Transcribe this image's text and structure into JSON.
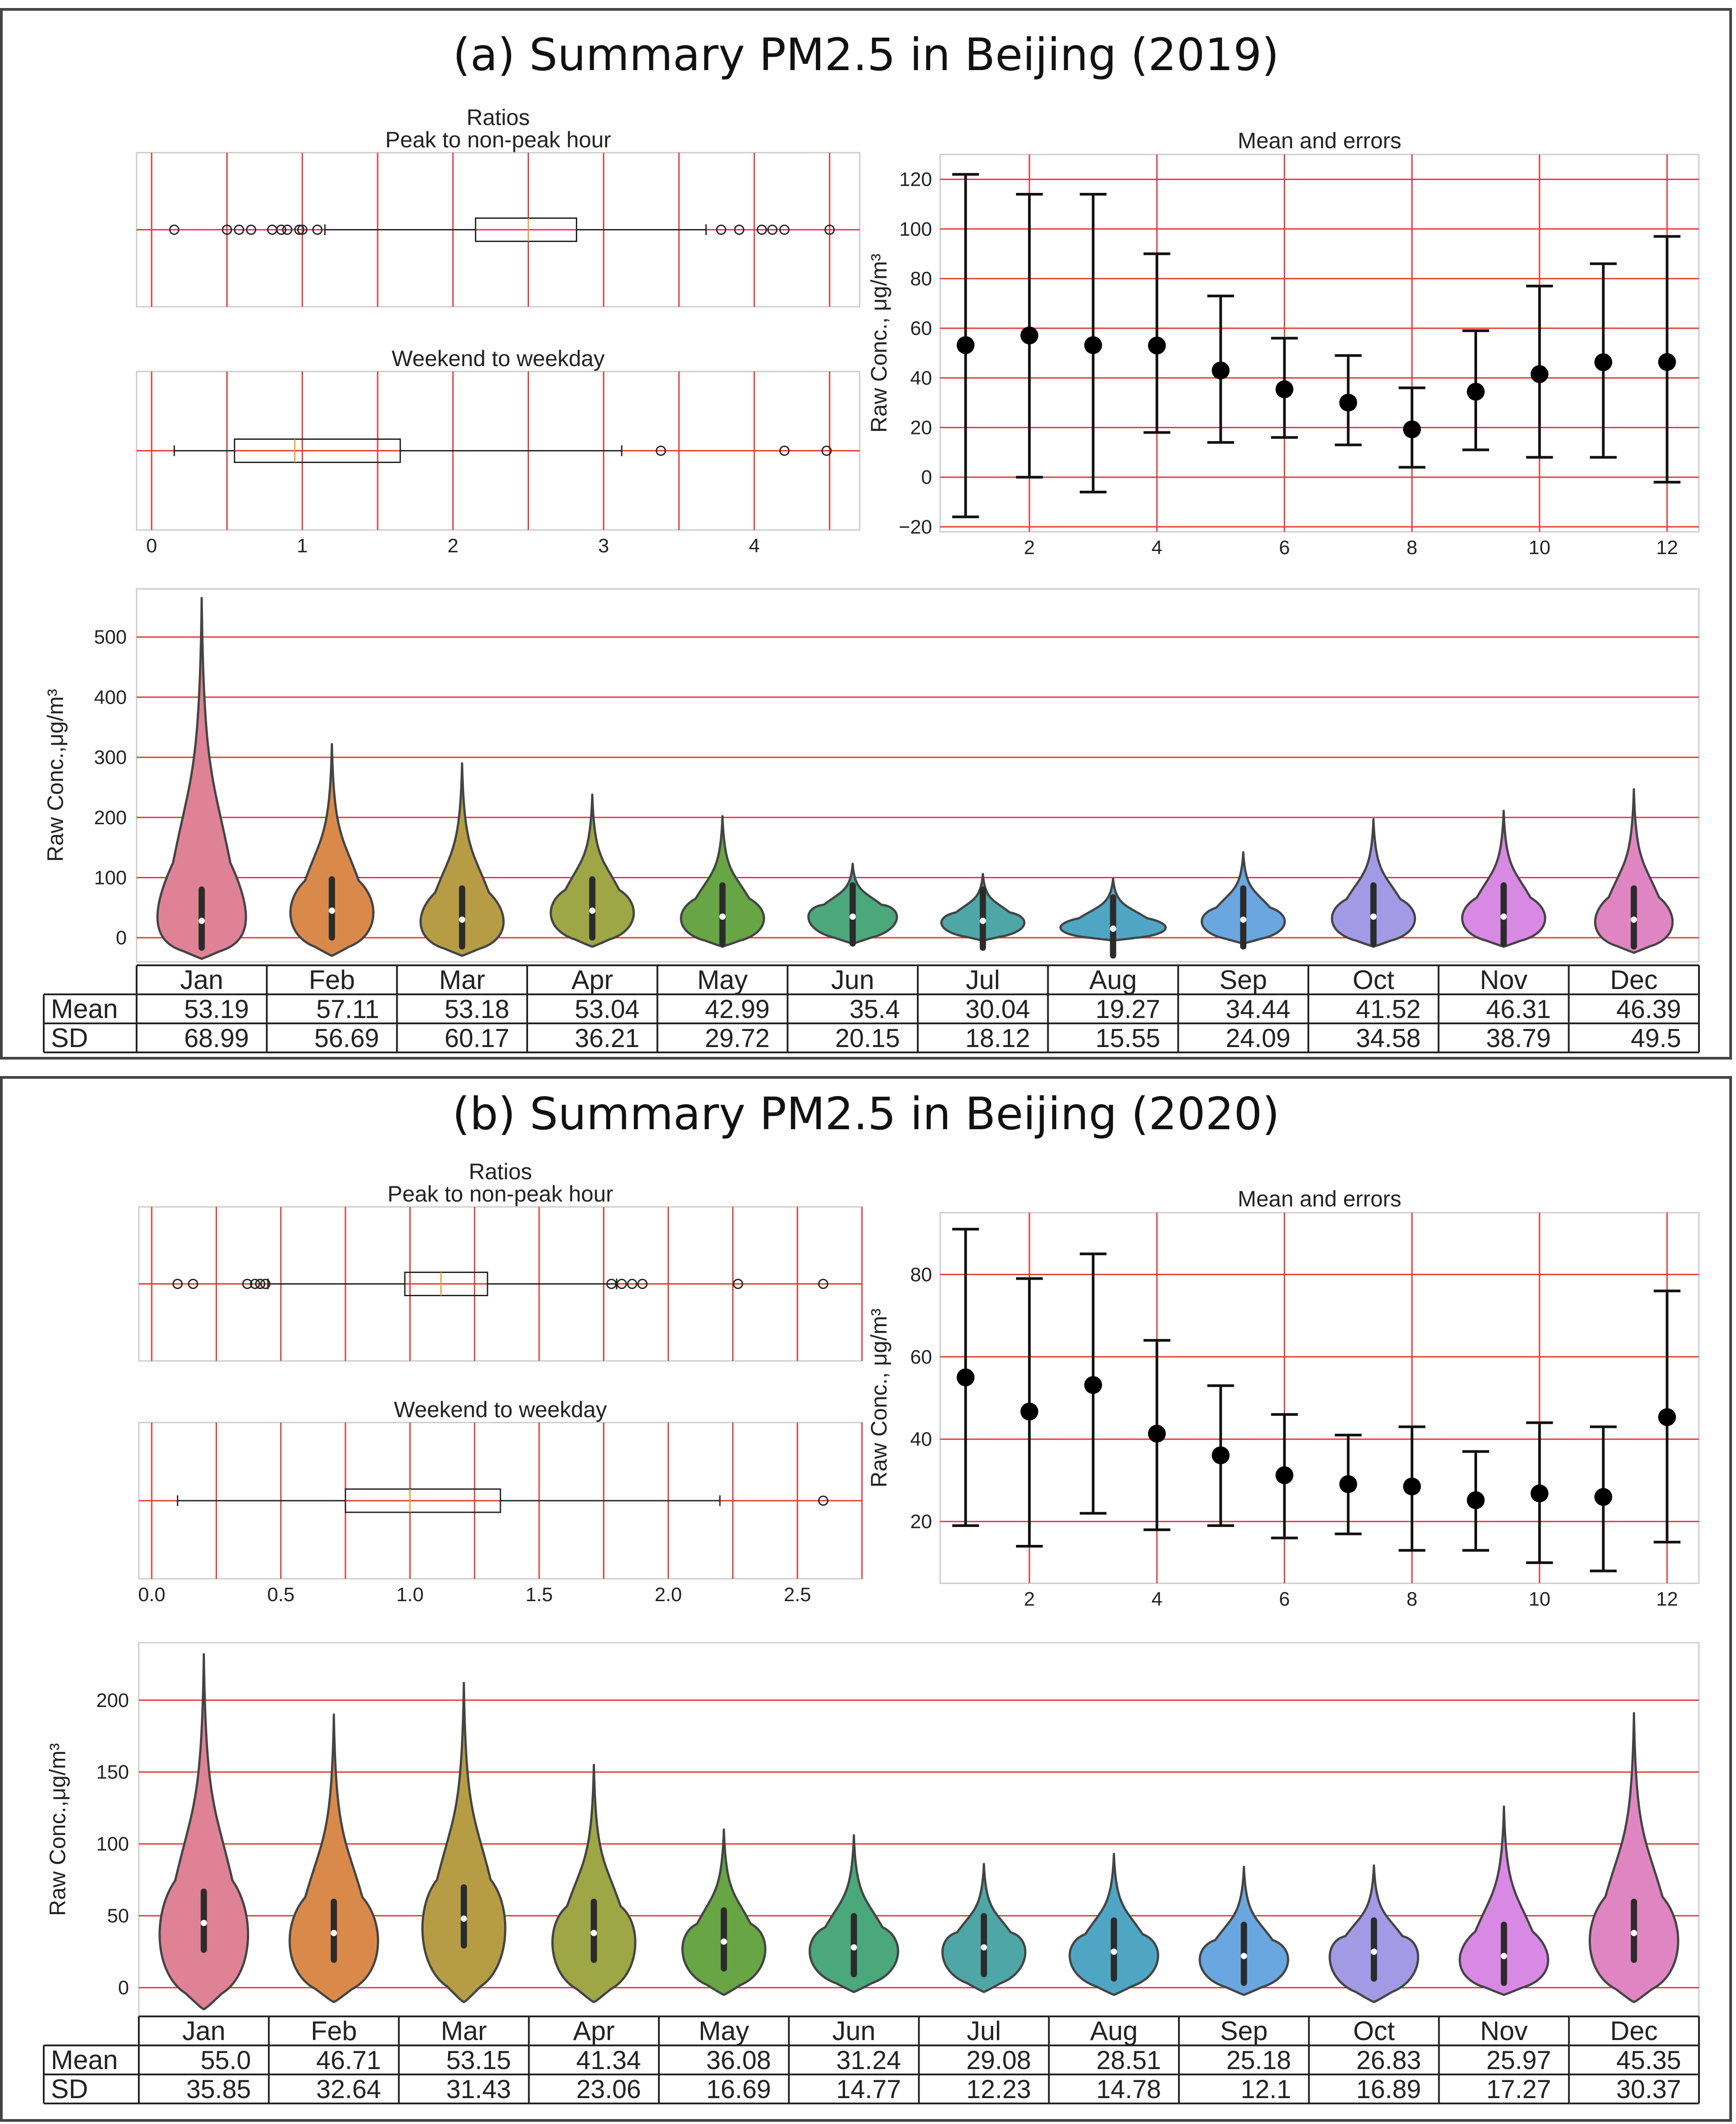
{
  "panels": [
    {
      "title": "(a) Summary PM2.5 in Beijing (2019)",
      "ratios_title_1": "Ratios",
      "ratios_title_2": "Peak to non-peak hour",
      "weekend_title": "Weekend to weekday",
      "ratio_axis": {
        "min": -0.1,
        "max": 4.7,
        "ticks": [
          0,
          1,
          2,
          3,
          4
        ],
        "tick_labels": [
          "0",
          "1",
          "2",
          "3",
          "4"
        ]
      },
      "peak_box": {
        "whisker_low": 1.15,
        "q1": 2.15,
        "median": 2.5,
        "q3": 2.82,
        "whisker_high": 3.68,
        "outliers": [
          0.15,
          0.5,
          0.58,
          0.66,
          0.8,
          0.86,
          0.9,
          0.98,
          1.0,
          1.1,
          3.78,
          3.9,
          4.05,
          4.12,
          4.2,
          4.5
        ]
      },
      "weekend_box": {
        "whisker_low": 0.15,
        "q1": 0.55,
        "median": 0.95,
        "q3": 1.65,
        "whisker_high": 3.12,
        "outliers": [
          3.38,
          4.2,
          4.48
        ]
      },
      "chart_data": {
        "type": "errorbar",
        "title": "Mean and errors",
        "ylabel": "Raw Conc., μg/m³",
        "x": [
          1,
          2,
          3,
          4,
          5,
          6,
          7,
          8,
          9,
          10,
          11,
          12
        ],
        "xticks": [
          2,
          4,
          6,
          8,
          10,
          12
        ],
        "xlim": [
          0.6,
          12.5
        ],
        "ylim": [
          -22,
          130
        ],
        "yticks": [
          -20,
          0,
          20,
          40,
          60,
          80,
          100,
          120
        ],
        "ytick_labels": [
          "−20",
          "0",
          "20",
          "40",
          "60",
          "80",
          "100",
          "120"
        ],
        "mean": [
          53.19,
          57.11,
          53.18,
          53.04,
          42.99,
          35.4,
          30.04,
          19.27,
          34.44,
          41.52,
          46.31,
          46.39
        ],
        "upper": [
          122,
          114,
          114,
          90,
          73,
          56,
          49,
          36,
          59,
          77,
          86,
          97
        ],
        "lower": [
          -16,
          0,
          -6,
          18,
          14,
          16,
          13,
          4,
          11,
          8,
          8,
          -2
        ]
      },
      "violin_data": {
        "type": "violin",
        "ylabel": "Raw Conc.,μg/m³",
        "ylim": [
          -40,
          580
        ],
        "yticks": [
          0,
          100,
          200,
          300,
          400,
          500
        ],
        "months": [
          "Jan",
          "Feb",
          "Mar",
          "Apr",
          "May",
          "Jun",
          "Jul",
          "Aug",
          "Sep",
          "Oct",
          "Nov",
          "Dec"
        ],
        "colors": [
          "#df8296",
          "#d98a4a",
          "#b69d45",
          "#9ea645",
          "#68a545",
          "#4aa87b",
          "#4ea7a6",
          "#4fa6c4",
          "#6aa7e0",
          "#a39ae6",
          "#d889e4",
          "#df86c2"
        ],
        "max": [
          565,
          322,
          290,
          238,
          202,
          123,
          106,
          98,
          142,
          197,
          211,
          247
        ],
        "min": [
          -35,
          -30,
          -30,
          -15,
          -15,
          -10,
          -5,
          -5,
          -10,
          -15,
          -15,
          -25
        ],
        "medians": [
          28,
          45,
          30,
          45,
          35,
          35,
          28,
          15,
          30,
          35,
          35,
          30
        ],
        "bulge": [
          28,
          45,
          28,
          45,
          35,
          40,
          28,
          18,
          30,
          35,
          35,
          28
        ],
        "width_factor": [
          0.8,
          0.75,
          0.75,
          0.75,
          0.75,
          0.8,
          0.75,
          0.95,
          0.75,
          0.75,
          0.75,
          0.7
        ],
        "table": {
          "row_labels": [
            "Mean",
            "SD"
          ],
          "mean": [
            "53.19",
            "57.11",
            "53.18",
            "53.04",
            "42.99",
            "35.4",
            "30.04",
            "19.27",
            "34.44",
            "41.52",
            "46.31",
            "46.39"
          ],
          "sd": [
            "68.99",
            "56.69",
            "60.17",
            "36.21",
            "29.72",
            "20.15",
            "18.12",
            "15.55",
            "24.09",
            "34.58",
            "38.79",
            "49.5"
          ]
        }
      }
    },
    {
      "title": "(b) Summary PM2.5 in Beijing (2020)",
      "ratios_title_1": "Ratios",
      "ratios_title_2": "Peak to non-peak hour",
      "weekend_title": "Weekend to weekday",
      "ratio_axis": {
        "min": -0.05,
        "max": 2.75,
        "ticks": [
          0.0,
          0.5,
          1.0,
          1.5,
          2.0,
          2.5
        ],
        "tick_labels": [
          "0.0",
          "0.5",
          "1.0",
          "1.5",
          "2.0",
          "2.5"
        ]
      },
      "peak_box": {
        "whisker_low": 0.45,
        "q1": 0.98,
        "median": 1.12,
        "q3": 1.3,
        "whisker_high": 1.8,
        "outliers": [
          0.1,
          0.16,
          0.37,
          0.4,
          0.42,
          0.44,
          1.78,
          1.82,
          1.86,
          1.9,
          2.27,
          2.6
        ]
      },
      "weekend_box": {
        "whisker_low": 0.1,
        "q1": 0.75,
        "median": 1.0,
        "q3": 1.35,
        "whisker_high": 2.2,
        "outliers": [
          2.6
        ]
      },
      "chart_data": {
        "type": "errorbar",
        "title": "Mean and errors",
        "ylabel": "Raw Conc., μg/m³",
        "x": [
          1,
          2,
          3,
          4,
          5,
          6,
          7,
          8,
          9,
          10,
          11,
          12
        ],
        "xticks": [
          2,
          4,
          6,
          8,
          10,
          12
        ],
        "xlim": [
          0.6,
          12.5
        ],
        "ylim": [
          5,
          95
        ],
        "yticks": [
          20,
          40,
          60,
          80
        ],
        "ytick_labels": [
          "20",
          "40",
          "60",
          "80"
        ],
        "mean": [
          55.0,
          46.71,
          53.15,
          41.34,
          36.08,
          31.24,
          29.08,
          28.51,
          25.18,
          26.83,
          25.97,
          45.35
        ],
        "upper": [
          91,
          79,
          85,
          64,
          53,
          46,
          41,
          43,
          37,
          44,
          43,
          76
        ],
        "lower": [
          19,
          14,
          22,
          18,
          19,
          16,
          17,
          13,
          13,
          10,
          8,
          15
        ]
      },
      "violin_data": {
        "type": "violin",
        "ylabel": "Raw Conc.,μg/m³",
        "ylim": [
          -20,
          240
        ],
        "yticks": [
          0,
          50,
          100,
          150,
          200
        ],
        "months": [
          "Jan",
          "Feb",
          "Mar",
          "Apr",
          "May",
          "Jun",
          "Jul",
          "Aug",
          "Sep",
          "Oct",
          "Nov",
          "Dec"
        ],
        "colors": [
          "#df8296",
          "#d98a4a",
          "#b69d45",
          "#9ea645",
          "#68a545",
          "#4aa87b",
          "#4ea7a6",
          "#4fa6c4",
          "#6aa7e0",
          "#a39ae6",
          "#d889e4",
          "#df86c2"
        ],
        "max": [
          232,
          190,
          212,
          155,
          110,
          106,
          86,
          93,
          84,
          85,
          126,
          191
        ],
        "min": [
          -15,
          -10,
          -10,
          -10,
          -5,
          -3,
          -3,
          -5,
          -5,
          -10,
          -5,
          -10
        ],
        "medians": [
          45,
          38,
          48,
          38,
          32,
          28,
          28,
          25,
          22,
          25,
          22,
          38
        ],
        "bulge": [
          40,
          35,
          45,
          35,
          30,
          28,
          28,
          25,
          22,
          25,
          20,
          35
        ],
        "width_factor": [
          0.8,
          0.8,
          0.75,
          0.75,
          0.75,
          0.8,
          0.75,
          0.8,
          0.8,
          0.8,
          0.8,
          0.8
        ],
        "table": {
          "row_labels": [
            "Mean",
            "SD"
          ],
          "mean": [
            "55.0",
            "46.71",
            "53.15",
            "41.34",
            "36.08",
            "31.24",
            "29.08",
            "28.51",
            "25.18",
            "26.83",
            "25.97",
            "45.35"
          ],
          "sd": [
            "35.85",
            "32.64",
            "31.43",
            "23.06",
            "16.69",
            "14.77",
            "12.23",
            "14.78",
            "12.1",
            "16.89",
            "17.27",
            "30.37"
          ]
        }
      }
    }
  ]
}
